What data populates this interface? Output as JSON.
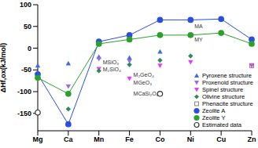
{
  "chart_data": {
    "type": "line",
    "y_label": "ΔHf,ox(kJ/mol)",
    "categories": [
      "Mg",
      "Ca",
      "Mn",
      "Fe",
      "Co",
      "Ni",
      "Cu",
      "Zn"
    ],
    "ylim": [
      -190,
      100
    ],
    "yticks": [
      -150,
      -100,
      -50,
      0,
      50,
      100
    ],
    "grid": false,
    "legend": "lower right",
    "series": [
      {
        "name": "Pyroxene structure",
        "color": "#4169e1",
        "marker": "triangle",
        "line_style": "none",
        "values": [
          -40,
          -35,
          -20,
          -22,
          -8,
          null,
          null,
          null
        ]
      },
      {
        "name": "Proxenoid structure",
        "color": "#9370db",
        "marker": "triangle-down",
        "line_style": "none",
        "values": [
          null,
          -88,
          -25,
          -30,
          null,
          null,
          null,
          null
        ]
      },
      {
        "name": "Spinel structure",
        "color": "#e040fb",
        "marker": "triangle-down",
        "line_style": "none",
        "values": [
          -65,
          null,
          -48,
          -70,
          -40,
          -32,
          null,
          -40
        ]
      },
      {
        "name": "Olivine structure",
        "color": "#2e8b57",
        "marker": "diamond",
        "line_style": "none",
        "values": [
          -62,
          -140,
          -52,
          -38,
          -28,
          -18,
          null,
          null
        ]
      },
      {
        "name": "Phenacite structure",
        "color": "#808080",
        "marker": "square",
        "line_style": "none",
        "values": [
          null,
          null,
          null,
          null,
          null,
          null,
          null,
          -40
        ]
      },
      {
        "name": "Zeolite A",
        "color": "#2a4ee0",
        "marker": "circle",
        "line_style": "solid",
        "values": [
          -60,
          -175,
          15,
          30,
          65,
          65,
          67,
          20
        ]
      },
      {
        "name": "Zeolite Y",
        "color": "#2ca02c",
        "marker": "circle",
        "line_style": "solid",
        "values": [
          -68,
          -105,
          10,
          20,
          30,
          30,
          35,
          10
        ]
      },
      {
        "name": "Estimated data",
        "color": "#333333",
        "marker": "circle-open",
        "line_style": "none",
        "values": [
          -148,
          null,
          null,
          null,
          -105,
          null,
          null,
          null
        ]
      }
    ],
    "annotations": [
      {
        "text": "MA",
        "x": "Ni",
        "y": 50
      },
      {
        "text": "MY",
        "x": "Ni",
        "y": 20
      },
      {
        "text": "MSiO₃",
        "x": "Mn",
        "y": -32
      },
      {
        "text": "M₂SiO₄",
        "x": "Mn",
        "y": -48
      },
      {
        "text": "M₂GeO₄",
        "x": "Fe",
        "y": -62
      },
      {
        "text": "MGeO₃",
        "x": "Fe",
        "y": -80
      },
      {
        "text": "MCaSi₂O₆",
        "x": "Fe",
        "y": -105
      }
    ]
  }
}
